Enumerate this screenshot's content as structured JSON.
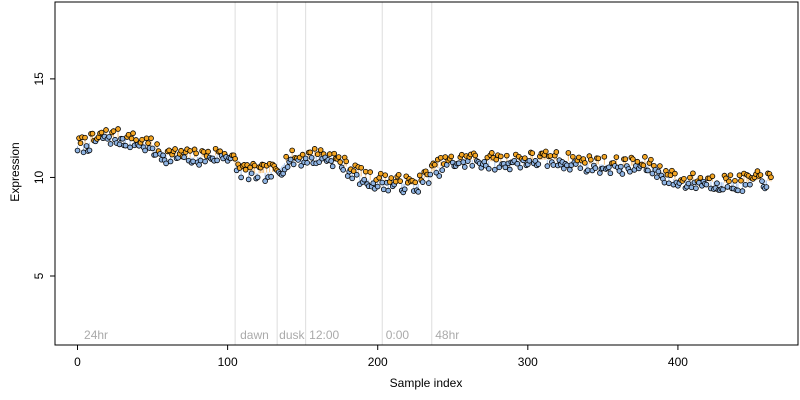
{
  "chart_data": {
    "type": "scatter",
    "title": "",
    "xlabel": "Sample index",
    "ylabel": "Expression",
    "xlim": [
      -15,
      480
    ],
    "ylim": [
      1.5,
      18.9
    ],
    "x_ticks": [
      0,
      100,
      200,
      300,
      400
    ],
    "y_ticks": [
      5,
      10,
      15
    ],
    "grid": false,
    "legend": "none",
    "colors": {
      "point_fill_a": "#f5a623",
      "point_fill_b": "#8fb4e3",
      "point_edge": "#000000",
      "segment_a": "#f5c07a",
      "segment_b": "#a9c6ee",
      "separator": "#dddddd",
      "annotation": "#aaaaaa"
    },
    "separators": [
      105,
      133,
      152,
      203,
      236
    ],
    "annotations": [
      {
        "x": 3,
        "y": 2.0,
        "label": "24hr"
      },
      {
        "x": 107,
        "y": 2.0,
        "label": "dawn"
      },
      {
        "x": 133,
        "y": 2.0,
        "label": "dusk"
      },
      {
        "x": 153,
        "y": 2.0,
        "label": "12:00"
      },
      {
        "x": 204,
        "y": 2.0,
        "label": "0:00"
      },
      {
        "x": 237,
        "y": 2.0,
        "label": "48hr"
      }
    ],
    "trend": [
      [
        0,
        11.6
      ],
      [
        10,
        11.8
      ],
      [
        18,
        12.1
      ],
      [
        30,
        12.0
      ],
      [
        40,
        11.8
      ],
      [
        48,
        11.6
      ],
      [
        55,
        11.2
      ],
      [
        65,
        11.1
      ],
      [
        75,
        11.0
      ],
      [
        90,
        11.1
      ],
      [
        100,
        11.2
      ],
      [
        108,
        10.4
      ],
      [
        120,
        10.2
      ],
      [
        133,
        10.3
      ],
      [
        140,
        10.9
      ],
      [
        150,
        11.0
      ],
      [
        160,
        11.1
      ],
      [
        170,
        11.0
      ],
      [
        180,
        10.5
      ],
      [
        192,
        9.9
      ],
      [
        203,
        9.8
      ],
      [
        215,
        9.7
      ],
      [
        226,
        9.6
      ],
      [
        236,
        10.3
      ],
      [
        245,
        10.7
      ],
      [
        260,
        10.9
      ],
      [
        280,
        10.8
      ],
      [
        300,
        10.9
      ],
      [
        320,
        10.9
      ],
      [
        340,
        10.7
      ],
      [
        360,
        10.6
      ],
      [
        380,
        10.6
      ],
      [
        390,
        10.2
      ],
      [
        400,
        9.8
      ],
      [
        420,
        9.8
      ],
      [
        440,
        9.7
      ],
      [
        455,
        9.9
      ],
      [
        462,
        9.8
      ]
    ],
    "n_points": 463,
    "seed": 7
  }
}
